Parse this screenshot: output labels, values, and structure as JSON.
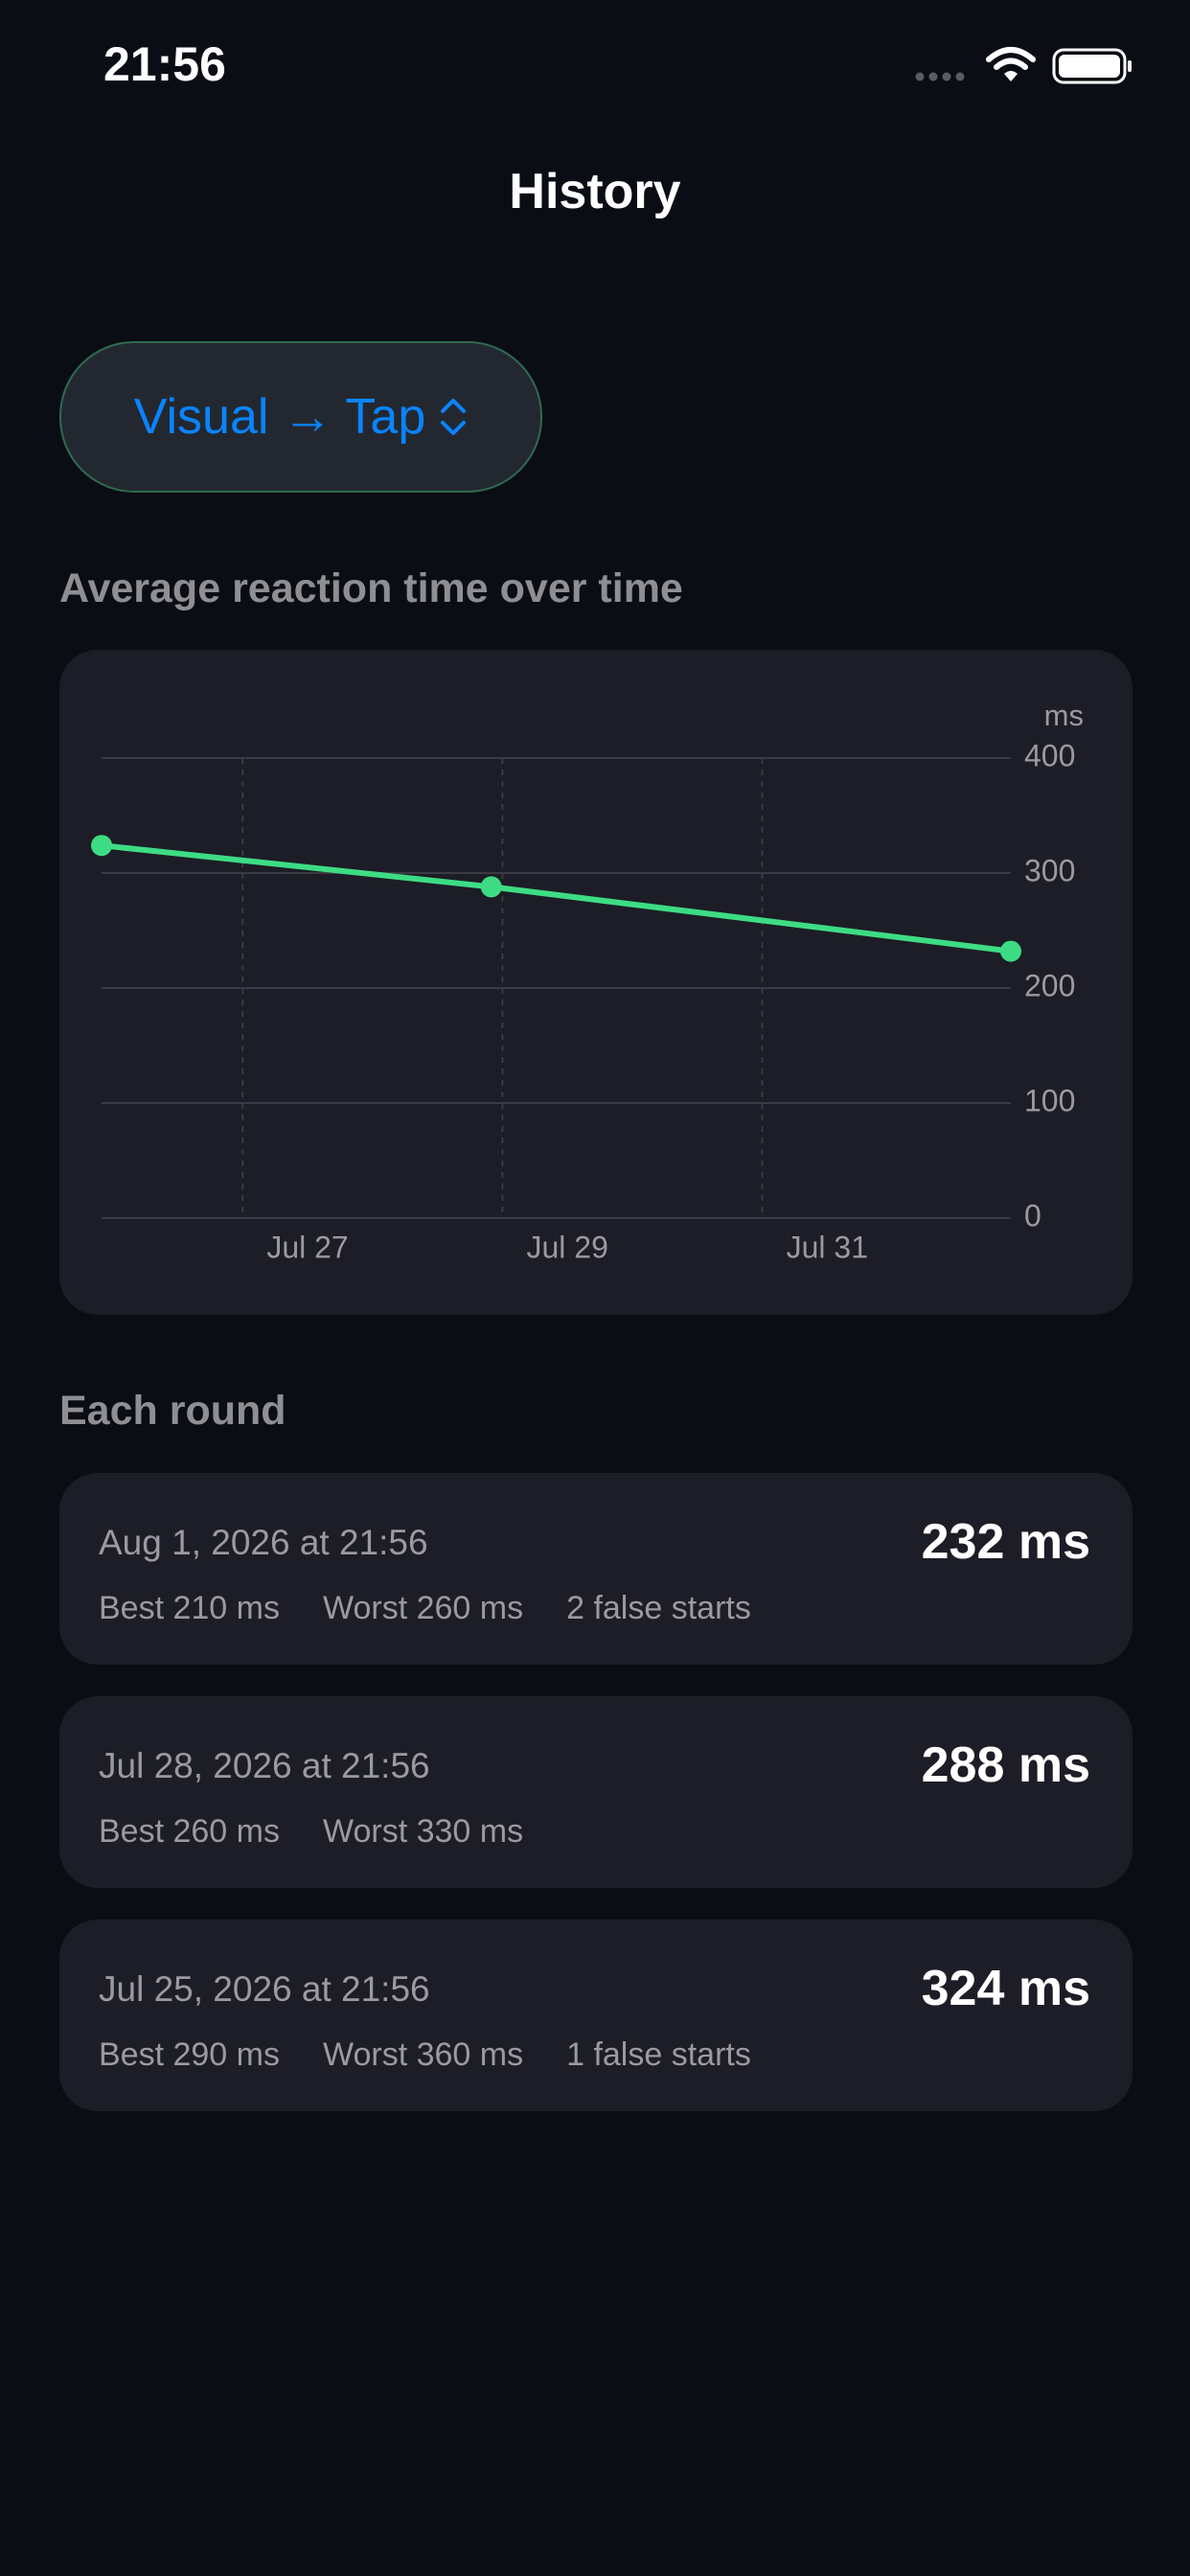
{
  "status_bar": {
    "time": "21:56"
  },
  "header": {
    "title": "History"
  },
  "picker": {
    "label": "Visual → Tap"
  },
  "chart_section": {
    "title": "Average reaction time over time"
  },
  "chart_data": {
    "type": "line",
    "y_label": "ms",
    "x": [
      "Jul 25 21:56",
      "Jul 28 21:56",
      "Aug 1 21:56"
    ],
    "series": [
      {
        "color": "#3ddc84",
        "values": [
          324,
          288,
          232
        ]
      }
    ],
    "xlim": [
      "Jul 25 21:56",
      "Aug 1 21:56"
    ],
    "xticks": [
      {
        "value": "Jul 27 00:00",
        "label": "Jul 27"
      },
      {
        "value": "Jul 29 00:00",
        "label": "Jul 29"
      },
      {
        "value": "Jul 31 00:00",
        "label": "Jul 31"
      }
    ],
    "ylim": [
      0,
      400
    ],
    "yticks": [
      0,
      100,
      200,
      300,
      400
    ],
    "grid": true
  },
  "rounds_section": {
    "title": "Each round",
    "rounds": [
      {
        "date": "Aug 1, 2026 at 21:56",
        "average": "232 ms",
        "stats": [
          "Best 210 ms",
          "Worst 260 ms",
          "2 false starts"
        ]
      },
      {
        "date": "Jul 28, 2026 at 21:56",
        "average": "288 ms",
        "stats": [
          "Best 260 ms",
          "Worst 330 ms"
        ]
      },
      {
        "date": "Jul 25, 2026 at 21:56",
        "average": "324 ms",
        "stats": [
          "Best 290 ms",
          "Worst 360 ms",
          "1 false starts"
        ]
      }
    ]
  }
}
